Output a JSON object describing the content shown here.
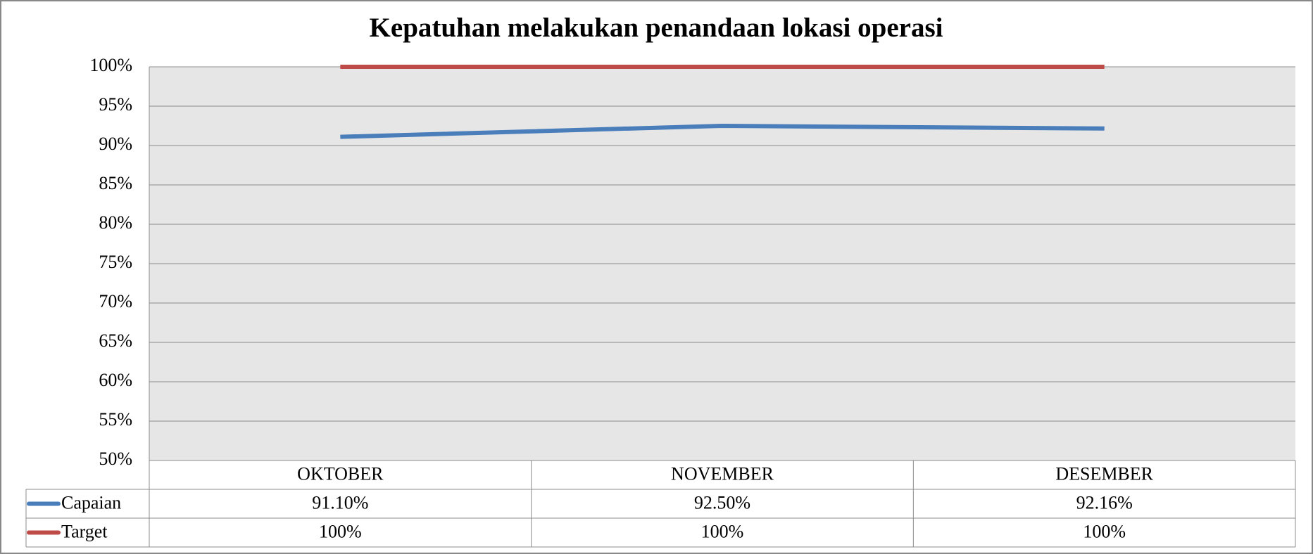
{
  "chart_data": {
    "type": "line",
    "title": "Kepatuhan melakukan penandaan lokasi operasi",
    "categories": [
      "OKTOBER",
      "NOVEMBER",
      "DESEMBER"
    ],
    "series": [
      {
        "name": "Capaian",
        "color": "#4a7ebb",
        "values": [
          91.1,
          92.5,
          92.16
        ],
        "value_labels": [
          "91.10%",
          "92.50%",
          "92.16%"
        ]
      },
      {
        "name": "Target",
        "color": "#be4b48",
        "values": [
          100,
          100,
          100
        ],
        "value_labels": [
          "100%",
          "100%",
          "100%"
        ]
      }
    ],
    "ylim": [
      50,
      100
    ],
    "yticks": [
      {
        "value": 50,
        "label": "50%"
      },
      {
        "value": 55,
        "label": "55%"
      },
      {
        "value": 60,
        "label": "60%"
      },
      {
        "value": 65,
        "label": "65%"
      },
      {
        "value": 70,
        "label": "70%"
      },
      {
        "value": 75,
        "label": "75%"
      },
      {
        "value": 80,
        "label": "80%"
      },
      {
        "value": 85,
        "label": "85%"
      },
      {
        "value": 90,
        "label": "90%"
      },
      {
        "value": 95,
        "label": "95%"
      },
      {
        "value": 100,
        "label": "100%"
      }
    ],
    "grid": true
  }
}
